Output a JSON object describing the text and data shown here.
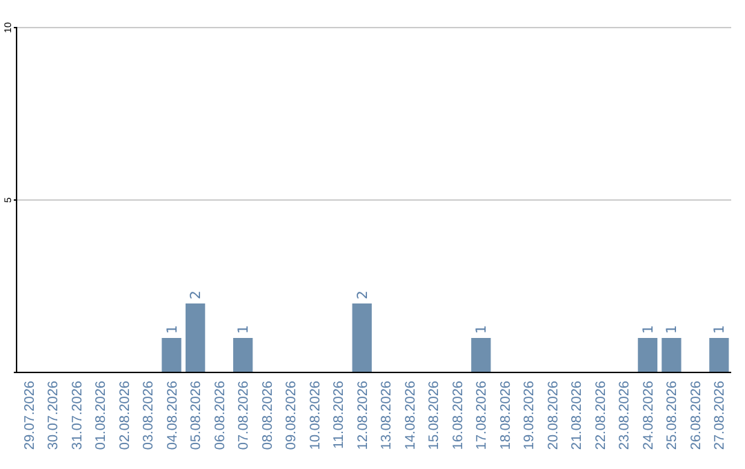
{
  "chart_data": {
    "type": "bar",
    "categories": [
      "29.07.2026",
      "30.07.2026",
      "31.07.2026",
      "01.08.2026",
      "02.08.2026",
      "03.08.2026",
      "04.08.2026",
      "05.08.2026",
      "06.08.2026",
      "07.08.2026",
      "08.08.2026",
      "09.08.2026",
      "10.08.2026",
      "11.08.2026",
      "12.08.2026",
      "13.08.2026",
      "14.08.2026",
      "15.08.2026",
      "16.08.2026",
      "17.08.2026",
      "18.08.2026",
      "19.08.2026",
      "20.08.2026",
      "21.08.2026",
      "22.08.2026",
      "23.08.2026",
      "24.08.2026",
      "25.08.2026",
      "26.08.2026",
      "27.08.2026"
    ],
    "values": [
      null,
      null,
      null,
      null,
      null,
      null,
      1,
      2,
      null,
      1,
      null,
      null,
      null,
      null,
      2,
      null,
      null,
      null,
      null,
      1,
      null,
      null,
      null,
      null,
      null,
      null,
      1,
      1,
      null,
      1
    ],
    "color": "#6e8fae",
    "ylim": [
      0,
      10
    ],
    "yticks": [
      {
        "value": 0,
        "label": null
      },
      5,
      10
    ],
    "grid": "y",
    "data_labels": true
  }
}
